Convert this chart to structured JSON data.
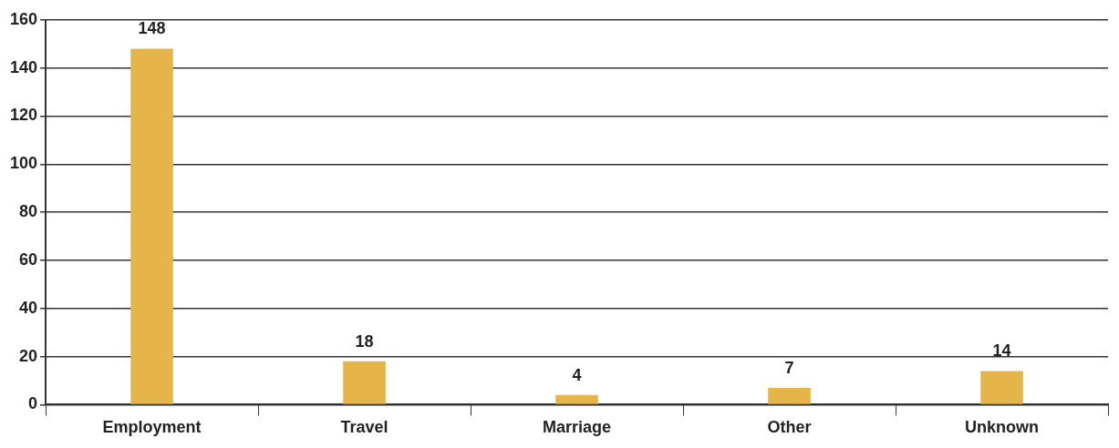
{
  "chart_data": {
    "type": "bar",
    "categories": [
      "Employment",
      "Travel",
      "Marriage",
      "Other",
      "Unknown"
    ],
    "values": [
      148,
      18,
      4,
      7,
      14
    ],
    "color": "#e6b54a",
    "ylim": [
      0,
      160
    ],
    "yticks": [
      0,
      20,
      40,
      60,
      80,
      100,
      120,
      140,
      160
    ],
    "grid": "y",
    "data_labels": true
  }
}
